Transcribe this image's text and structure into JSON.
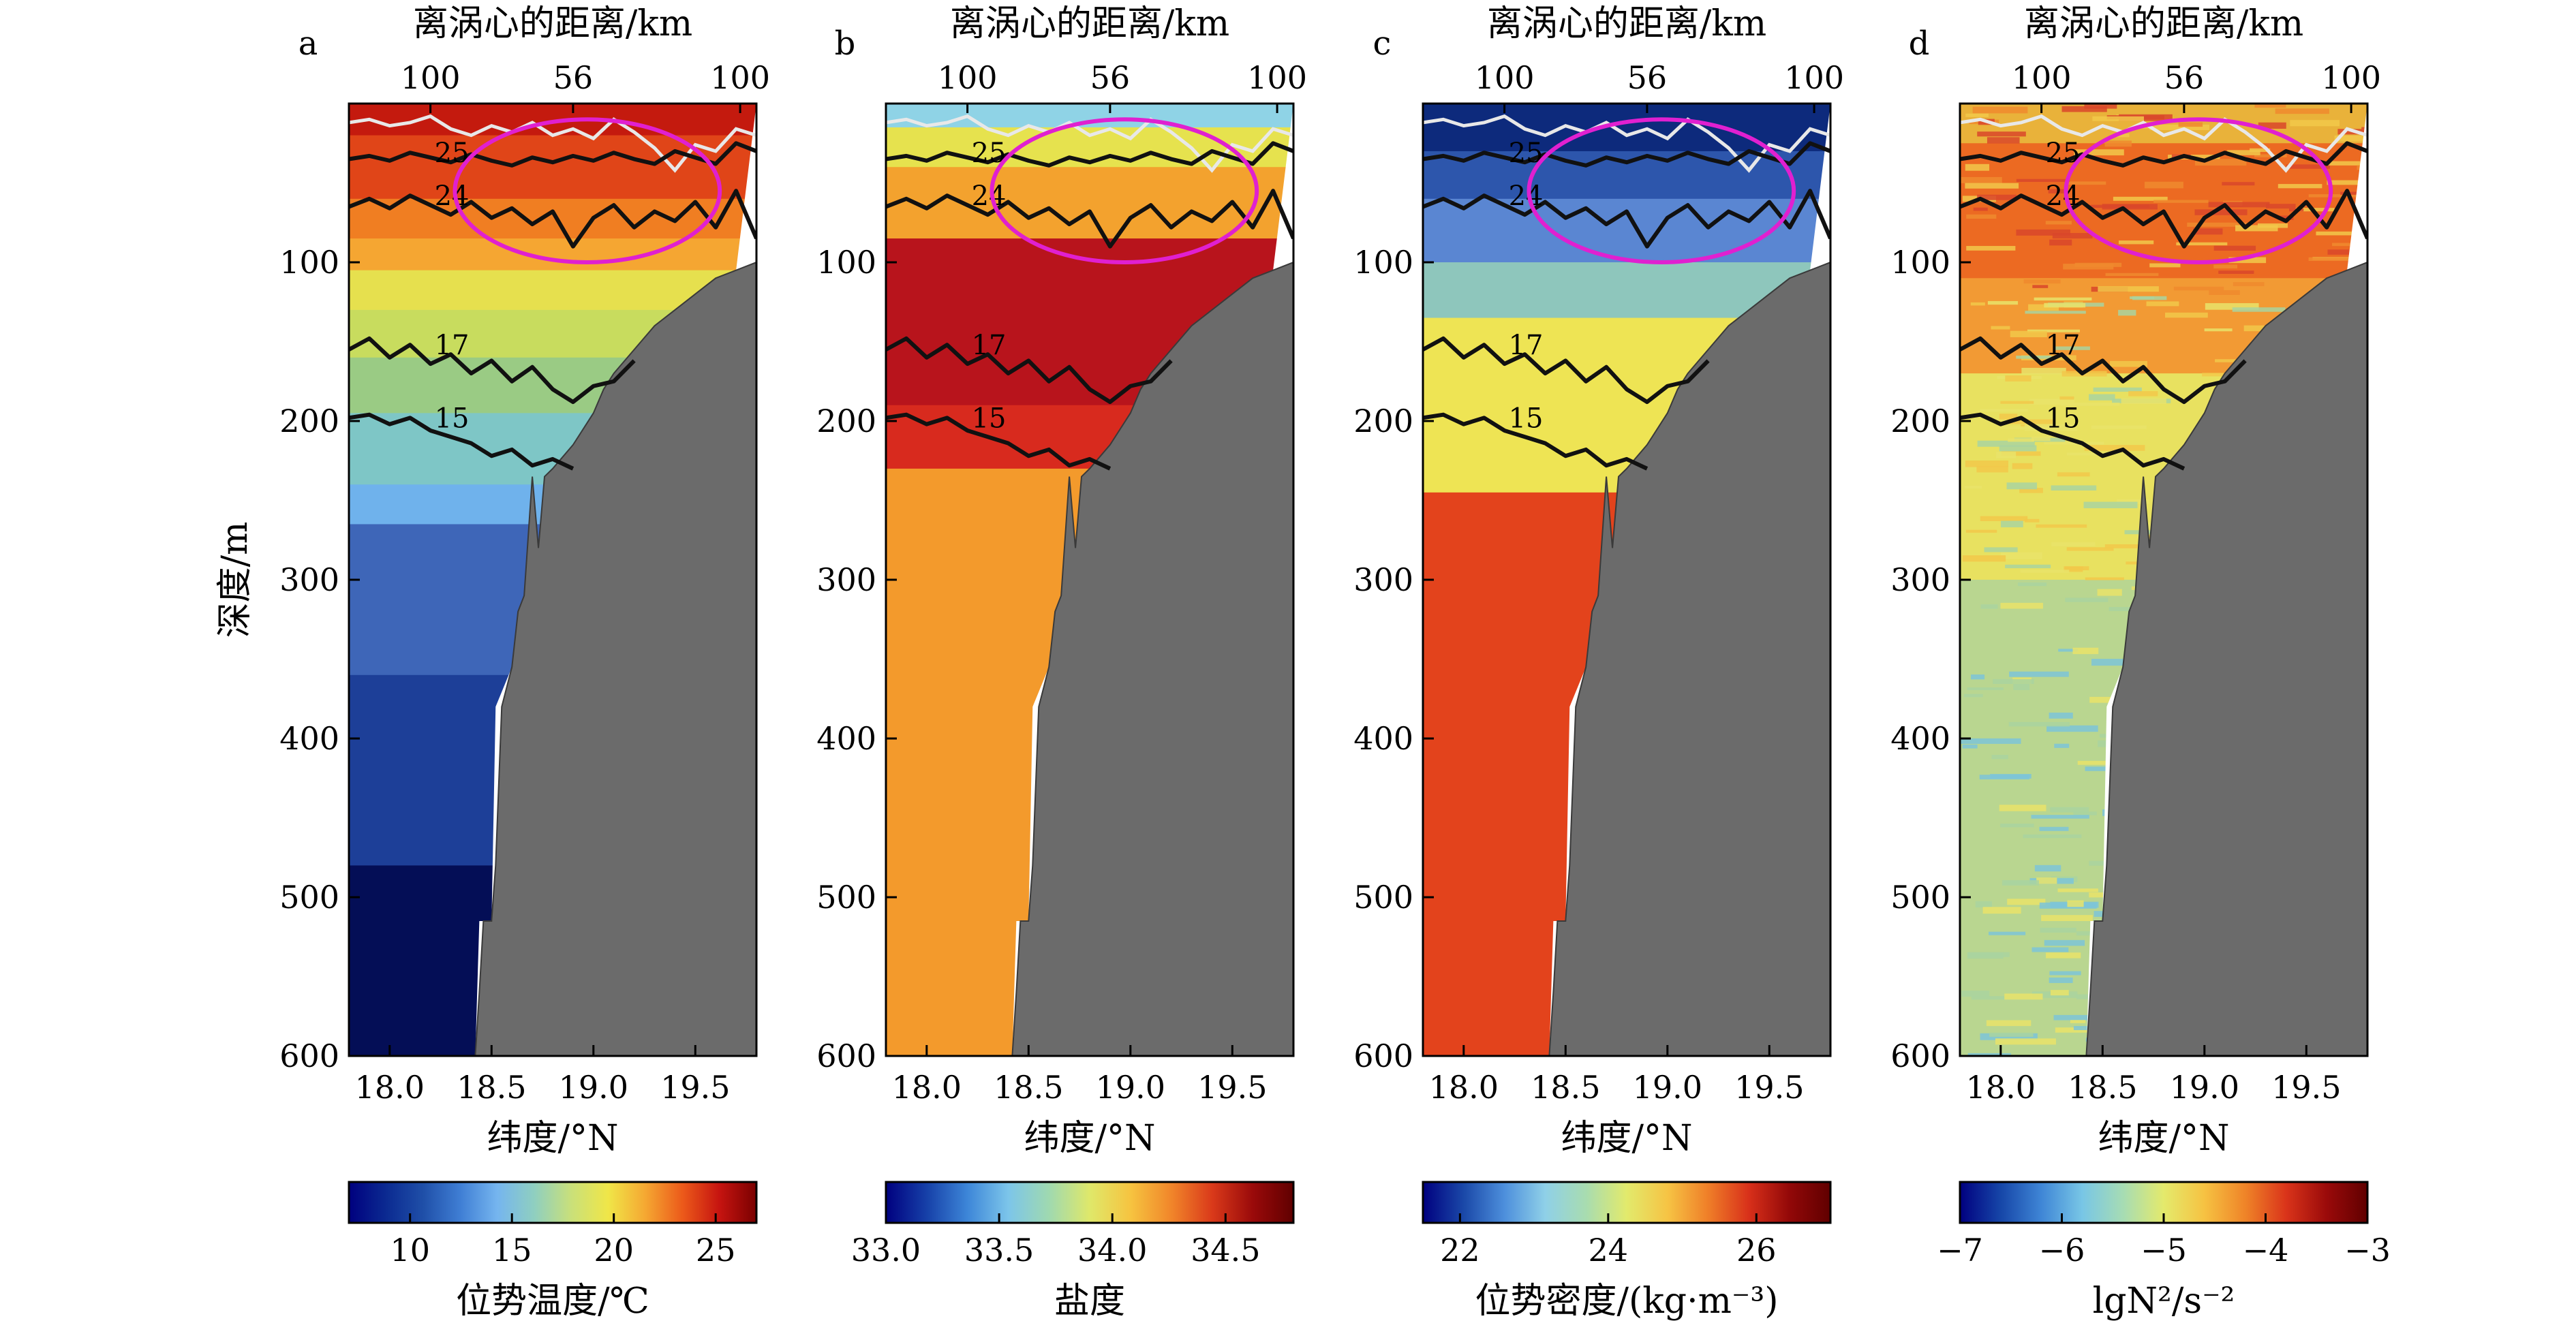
{
  "chart_data": [
    {
      "panel": "a",
      "type": "heatmap",
      "top_axis": {
        "label": "离涡心的距离/km",
        "ticks": [
          {
            "x": 18.2,
            "label": "100"
          },
          {
            "x": 18.9,
            "label": "56"
          },
          {
            "x": 19.72,
            "label": "100"
          }
        ]
      },
      "xlabel": "纬度/°N",
      "ylabel": "深度/m",
      "xlim": [
        17.8,
        19.8
      ],
      "ylim": [
        600,
        0
      ],
      "xticks": [
        {
          "v": 18.0,
          "label": "18.0"
        },
        {
          "v": 18.5,
          "label": "18.5"
        },
        {
          "v": 19.0,
          "label": "19.0"
        },
        {
          "v": 19.5,
          "label": "19.5"
        }
      ],
      "yticks": [
        {
          "v": 100,
          "label": "100"
        },
        {
          "v": 200,
          "label": "200"
        },
        {
          "v": 300,
          "label": "300"
        },
        {
          "v": 400,
          "label": "400"
        },
        {
          "v": 500,
          "label": "500"
        },
        {
          "v": 600,
          "label": "600"
        }
      ],
      "variable": "potential temperature",
      "colorbar": {
        "label": "位势温度/℃",
        "range": [
          7,
          27
        ],
        "ticks": [
          {
            "v": 10,
            "label": "10"
          },
          {
            "v": 15,
            "label": "15"
          },
          {
            "v": 20,
            "label": "20"
          },
          {
            "v": 25,
            "label": "25"
          }
        ]
      },
      "layers": [
        {
          "depth": [
            0,
            20
          ],
          "color": "#c41a0e"
        },
        {
          "depth": [
            20,
            60
          ],
          "color": "#e04518"
        },
        {
          "depth": [
            60,
            85
          ],
          "color": "#f07e22"
        },
        {
          "depth": [
            85,
            105
          ],
          "color": "#f5a632"
        },
        {
          "depth": [
            105,
            130
          ],
          "color": "#e6e04e"
        },
        {
          "depth": [
            130,
            160
          ],
          "color": "#c8dc5e"
        },
        {
          "depth": [
            160,
            195
          ],
          "color": "#9acb84"
        },
        {
          "depth": [
            195,
            240
          ],
          "color": "#7ec6c6"
        },
        {
          "depth": [
            240,
            265
          ],
          "color": "#6fb2ec"
        },
        {
          "depth": [
            265,
            360
          ],
          "color": "#3e66b8"
        },
        {
          "depth": [
            360,
            480
          ],
          "color": "#1d3f98"
        },
        {
          "depth": [
            480,
            600
          ],
          "color": "#040e56"
        }
      ],
      "contours": [
        "25",
        "24",
        "17",
        "15"
      ]
    },
    {
      "panel": "b",
      "type": "heatmap",
      "top_axis": {
        "label": "离涡心的距离/km",
        "ticks": [
          {
            "x": 18.2,
            "label": "100"
          },
          {
            "x": 18.9,
            "label": "56"
          },
          {
            "x": 19.72,
            "label": "100"
          }
        ]
      },
      "xlabel": "纬度/°N",
      "xlim": [
        17.8,
        19.8
      ],
      "ylim": [
        600,
        0
      ],
      "xticks": [
        {
          "v": 18.0,
          "label": "18.0"
        },
        {
          "v": 18.5,
          "label": "18.5"
        },
        {
          "v": 19.0,
          "label": "19.0"
        },
        {
          "v": 19.5,
          "label": "19.5"
        }
      ],
      "yticks": [
        {
          "v": 100,
          "label": "100"
        },
        {
          "v": 200,
          "label": "200"
        },
        {
          "v": 300,
          "label": "300"
        },
        {
          "v": 400,
          "label": "400"
        },
        {
          "v": 500,
          "label": "500"
        },
        {
          "v": 600,
          "label": "600"
        }
      ],
      "variable": "salinity",
      "colorbar": {
        "label": "盐度",
        "range": [
          33.0,
          34.8
        ],
        "ticks": [
          {
            "v": 33.0,
            "label": "33.0"
          },
          {
            "v": 33.5,
            "label": "33.5"
          },
          {
            "v": 34.0,
            "label": "34.0"
          },
          {
            "v": 34.5,
            "label": "34.5"
          }
        ]
      },
      "layers": [
        {
          "depth": [
            0,
            15
          ],
          "color": "#8fd3e6"
        },
        {
          "depth": [
            15,
            40
          ],
          "color": "#e6e24e"
        },
        {
          "depth": [
            40,
            85
          ],
          "color": "#f3a22e"
        },
        {
          "depth": [
            85,
            190
          ],
          "color": "#b8141c"
        },
        {
          "depth": [
            190,
            230
          ],
          "color": "#d82a1e"
        },
        {
          "depth": [
            230,
            600
          ],
          "color": "#f39a2c"
        }
      ],
      "contours": [
        "25",
        "24",
        "17",
        "15"
      ]
    },
    {
      "panel": "c",
      "type": "heatmap",
      "top_axis": {
        "label": "离涡心的距离/km",
        "ticks": [
          {
            "x": 18.2,
            "label": "100"
          },
          {
            "x": 18.9,
            "label": "56"
          },
          {
            "x": 19.72,
            "label": "100"
          }
        ]
      },
      "xlabel": "纬度/°N",
      "xlim": [
        17.8,
        19.8
      ],
      "ylim": [
        600,
        0
      ],
      "xticks": [
        {
          "v": 18.0,
          "label": "18.0"
        },
        {
          "v": 18.5,
          "label": "18.5"
        },
        {
          "v": 19.0,
          "label": "19.0"
        },
        {
          "v": 19.5,
          "label": "19.5"
        }
      ],
      "yticks": [
        {
          "v": 100,
          "label": "100"
        },
        {
          "v": 200,
          "label": "200"
        },
        {
          "v": 300,
          "label": "300"
        },
        {
          "v": 400,
          "label": "400"
        },
        {
          "v": 500,
          "label": "500"
        },
        {
          "v": 600,
          "label": "600"
        }
      ],
      "variable": "potential density",
      "colorbar": {
        "label": "位势密度/(kg·m⁻³)",
        "range": [
          21.5,
          27.0
        ],
        "ticks": [
          {
            "v": 22,
            "label": "22"
          },
          {
            "v": 24,
            "label": "24"
          },
          {
            "v": 26,
            "label": "26"
          }
        ]
      },
      "layers": [
        {
          "depth": [
            0,
            30
          ],
          "color": "#0d2a7c"
        },
        {
          "depth": [
            30,
            60
          ],
          "color": "#2d56ac"
        },
        {
          "depth": [
            60,
            100
          ],
          "color": "#5a86d2"
        },
        {
          "depth": [
            100,
            135
          ],
          "color": "#8ec6bc"
        },
        {
          "depth": [
            135,
            195
          ],
          "color": "#eee454"
        },
        {
          "depth": [
            195,
            245
          ],
          "color": "#eee454"
        },
        {
          "depth": [
            245,
            600
          ],
          "color": "#e3431c"
        }
      ],
      "contours": [
        "25",
        "24",
        "17",
        "15"
      ]
    },
    {
      "panel": "d",
      "type": "heatmap",
      "top_axis": {
        "label": "离涡心的距离/km",
        "ticks": [
          {
            "x": 18.2,
            "label": "100"
          },
          {
            "x": 18.9,
            "label": "56"
          },
          {
            "x": 19.72,
            "label": "100"
          }
        ]
      },
      "xlabel": "纬度/°N",
      "xlim": [
        17.8,
        19.8
      ],
      "ylim": [
        600,
        0
      ],
      "xticks": [
        {
          "v": 18.0,
          "label": "18.0"
        },
        {
          "v": 18.5,
          "label": "18.5"
        },
        {
          "v": 19.0,
          "label": "19.0"
        },
        {
          "v": 19.5,
          "label": "19.5"
        }
      ],
      "yticks": [
        {
          "v": 100,
          "label": "100"
        },
        {
          "v": 200,
          "label": "200"
        },
        {
          "v": 300,
          "label": "300"
        },
        {
          "v": 400,
          "label": "400"
        },
        {
          "v": 500,
          "label": "500"
        },
        {
          "v": 600,
          "label": "600"
        }
      ],
      "variable": "lg N^2",
      "colorbar": {
        "label": "lgN²/s⁻²",
        "range": [
          -7,
          -3
        ],
        "ticks": [
          {
            "v": -7,
            "label": "−7"
          },
          {
            "v": -6,
            "label": "−6"
          },
          {
            "v": -5,
            "label": "−5"
          },
          {
            "v": -4,
            "label": "−4"
          },
          {
            "v": -3,
            "label": "−3"
          }
        ]
      },
      "layers": [
        {
          "depth": [
            0,
            25
          ],
          "color": "#e9b23a"
        },
        {
          "depth": [
            25,
            110
          ],
          "color": "#ec6a22"
        },
        {
          "depth": [
            110,
            170
          ],
          "color": "#f29a34"
        },
        {
          "depth": [
            170,
            300
          ],
          "color": "#e8e160"
        },
        {
          "depth": [
            300,
            600
          ],
          "color": "#b9d690"
        }
      ],
      "contours": [
        "25",
        "24",
        "17",
        "15"
      ]
    }
  ],
  "contour_lines": [
    {
      "label": "25",
      "x": [
        17.8,
        17.9,
        18.0,
        18.1,
        18.2,
        18.3,
        18.4,
        18.5,
        18.6,
        18.7,
        18.8,
        18.9,
        19.0,
        19.1,
        19.2,
        19.3,
        19.4,
        19.5,
        19.6,
        19.7,
        19.8
      ],
      "y": [
        35,
        33,
        36,
        31,
        34,
        37,
        32,
        36,
        39,
        34,
        37,
        33,
        36,
        31,
        35,
        38,
        30,
        34,
        38,
        25,
        30
      ],
      "label_x": 18.22
    },
    {
      "label": "24",
      "x": [
        17.8,
        17.9,
        18.0,
        18.1,
        18.2,
        18.3,
        18.4,
        18.5,
        18.6,
        18.7,
        18.8,
        18.9,
        19.0,
        19.1,
        19.2,
        19.3,
        19.4,
        19.5,
        19.6,
        19.7,
        19.8
      ],
      "y": [
        65,
        60,
        66,
        58,
        64,
        70,
        62,
        72,
        66,
        76,
        68,
        90,
        72,
        64,
        78,
        68,
        74,
        62,
        78,
        55,
        85
      ],
      "label_x": 18.22
    },
    {
      "label": "17",
      "x": [
        17.8,
        17.9,
        18.0,
        18.1,
        18.2,
        18.3,
        18.4,
        18.5,
        18.6,
        18.7,
        18.8,
        18.9,
        19.0,
        19.1,
        19.2
      ],
      "y": [
        155,
        148,
        160,
        152,
        164,
        158,
        170,
        162,
        175,
        166,
        180,
        188,
        178,
        175,
        162
      ],
      "label_x": 18.22
    },
    {
      "label": "15",
      "x": [
        17.8,
        17.9,
        18.0,
        18.1,
        18.2,
        18.3,
        18.4,
        18.5,
        18.6,
        18.7,
        18.8,
        18.9
      ],
      "y": [
        198,
        196,
        202,
        198,
        206,
        210,
        214,
        222,
        218,
        228,
        224,
        230
      ],
      "label_x": 18.22
    }
  ],
  "white_mixed_layer_line": {
    "x": [
      17.8,
      17.9,
      18.0,
      18.1,
      18.2,
      18.3,
      18.4,
      18.5,
      18.6,
      18.7,
      18.8,
      18.9,
      19.0,
      19.1,
      19.2,
      19.3,
      19.4,
      19.5,
      19.6,
      19.7,
      19.8
    ],
    "y": [
      12,
      10,
      14,
      12,
      8,
      16,
      20,
      14,
      18,
      12,
      20,
      16,
      22,
      10,
      18,
      28,
      42,
      26,
      30,
      16,
      20
    ]
  },
  "bathymetry": {
    "lat": [
      17.8,
      18.42,
      18.44,
      18.46,
      18.5,
      18.52,
      18.55,
      18.6,
      18.63,
      18.66,
      18.7,
      18.73,
      18.76,
      18.8,
      18.9,
      19.0,
      19.05,
      19.1,
      19.2,
      19.3,
      19.4,
      19.5,
      19.6,
      19.7,
      19.8
    ],
    "depth": [
      600,
      600,
      560,
      515,
      515,
      480,
      380,
      355,
      320,
      310,
      235,
      280,
      235,
      230,
      215,
      195,
      180,
      170,
      155,
      140,
      130,
      120,
      110,
      105,
      100
    ]
  },
  "data_coverage_limit": {
    "lat": [
      18.42,
      18.44,
      18.5,
      18.52,
      18.6,
      18.66,
      18.7,
      18.76,
      18.8,
      18.9,
      19.0,
      19.1,
      19.2,
      19.3,
      19.4,
      19.5,
      19.6,
      19.7
    ],
    "depth": [
      600,
      515,
      515,
      380,
      355,
      320,
      310,
      280,
      235,
      235,
      225,
      205,
      190,
      170,
      145,
      125,
      115,
      105
    ]
  },
  "eddy_ellipse": {
    "center_lat": 18.97,
    "center_depth": 55,
    "half_width_lat": 0.65,
    "half_depth": 45
  }
}
